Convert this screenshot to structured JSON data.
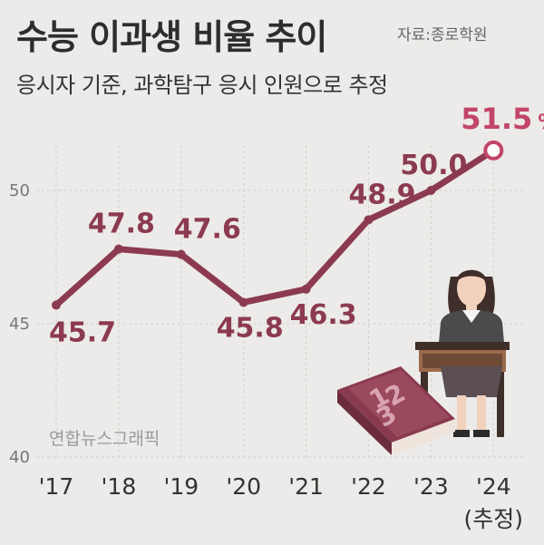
{
  "header": {
    "title": "수능 이과생 비율 추이",
    "source": "자료:종로학원",
    "subtitle": "응시자 기준, 과학탐구 응시 인원으로 추정"
  },
  "credit": "연합뉴스그래픽",
  "chart_data": {
    "type": "line",
    "title": "수능 이과생 비율 추이",
    "subtitle": "응시자 기준, 과학탐구 응시 인원으로 추정",
    "categories": [
      "'17",
      "'18",
      "'19",
      "'20",
      "'21",
      "'22",
      "'23",
      "'24"
    ],
    "category_note": "(추정)",
    "values": [
      45.7,
      47.8,
      47.6,
      45.8,
      46.3,
      48.9,
      50.0,
      51.5
    ],
    "value_labels": [
      "45.7",
      "47.8",
      "47.6",
      "45.8",
      "46.3",
      "48.9",
      "50.0",
      "51.5"
    ],
    "unit": "%",
    "yticks": [
      40,
      45,
      50
    ],
    "ylim": [
      40,
      55
    ],
    "grid": true,
    "line_color": "#8c3a52",
    "highlight_color": "#c2456a"
  }
}
